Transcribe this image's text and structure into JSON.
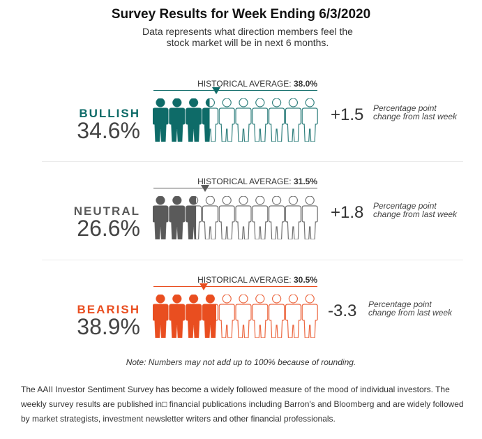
{
  "title": "Survey Results for Week Ending 6/3/2020",
  "subtitle": "Data represents what direction members feel the stock market will be in next 6 months.",
  "historical_prefix": "HISTORICAL AVERAGE:",
  "change_note": "Percentage point change from last week",
  "footnote": "Note: Numbers may not add up to 100% because of rounding.",
  "description": "The AAII Investor Sentiment Survey has become a widely followed measure of the mood of individual investors. The weekly survey results are published in□ financial publications including Barron's and Bloomberg and are widely followed by market strategists, investment newsletter writers and other financial professionals.",
  "chart_data": {
    "type": "pictograph",
    "icons_per_row": 10,
    "scale_percent": 100,
    "series": [
      {
        "name": "BULLISH",
        "value_label": "34.6%",
        "value": 34.6,
        "historical_label": "38.0%",
        "historical": 38.0,
        "change_label": "+1.5",
        "change": 1.5,
        "color": "#0e6b68"
      },
      {
        "name": "NEUTRAL",
        "value_label": "26.6%",
        "value": 26.6,
        "historical_label": "31.5%",
        "historical": 31.5,
        "change_label": "+1.8",
        "change": 1.8,
        "color": "#5a5a5a"
      },
      {
        "name": "BEARISH",
        "value_label": "38.9%",
        "value": 38.9,
        "historical_label": "30.5%",
        "historical": 30.5,
        "change_label": "-3.3",
        "change": -3.3,
        "color": "#e94e20"
      }
    ]
  }
}
